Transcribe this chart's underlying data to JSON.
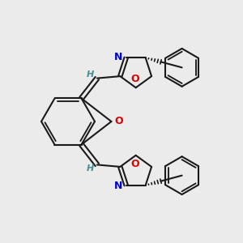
{
  "bg_color": "#ebebeb",
  "bond_color": "#1a1a1a",
  "O_color": "#dd0000",
  "N_color": "#0000cc",
  "H_color": "#4a9090",
  "lw": 1.5,
  "figsize": [
    3.0,
    3.0
  ],
  "dpi": 100,
  "xlim": [
    0,
    10
  ],
  "ylim": [
    0,
    10
  ]
}
